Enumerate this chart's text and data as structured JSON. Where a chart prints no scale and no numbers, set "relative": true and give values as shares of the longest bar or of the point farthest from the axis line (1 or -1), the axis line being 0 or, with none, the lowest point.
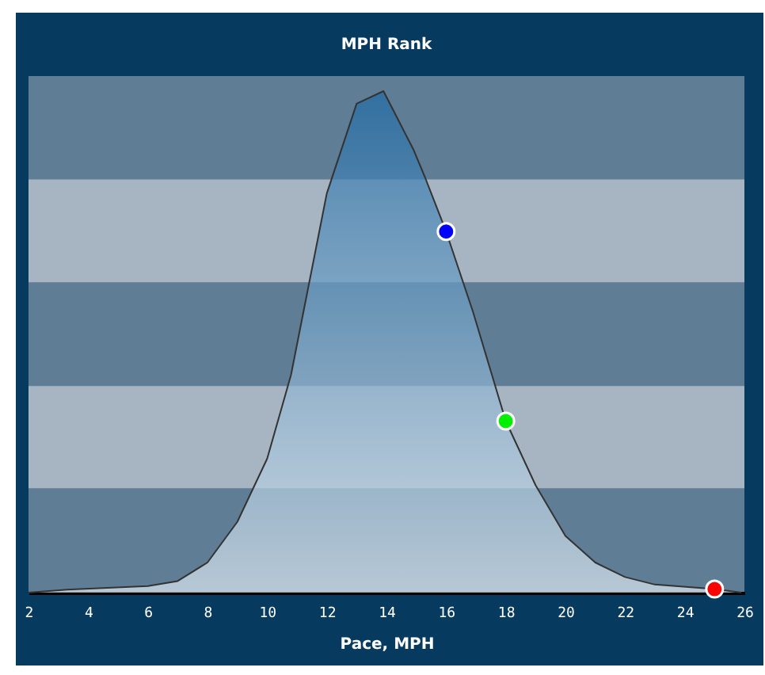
{
  "chart_data": {
    "type": "area",
    "title": "MPH Rank",
    "xlabel": "Pace, MPH",
    "relative": true,
    "xlim": [
      2,
      26
    ],
    "xticks": [
      2,
      4,
      6,
      8,
      10,
      12,
      14,
      16,
      18,
      20,
      22,
      24,
      26
    ],
    "bands": [
      {
        "axis": "y",
        "from": 0.208,
        "to": 0.412,
        "color": "#a7b5c2"
      },
      {
        "axis": "y",
        "from": 0.619,
        "to": 0.824,
        "color": "#a7b5c2"
      }
    ],
    "series": [
      {
        "color": "#1f6aa5",
        "marker": "none",
        "x": [
          2,
          3.3,
          6,
          7,
          8,
          9,
          10,
          10.8,
          12,
          13,
          13.9,
          14.9,
          15.3,
          16,
          16.9,
          18,
          19,
          20,
          21,
          22,
          23,
          25,
          25.9
        ],
        "values": [
          0,
          0.006,
          0.013,
          0.023,
          0.06,
          0.141,
          0.267,
          0.434,
          0.796,
          0.975,
          1,
          0.884,
          0.827,
          0.72,
          0.56,
          0.342,
          0.214,
          0.113,
          0.06,
          0.031,
          0.016,
          0.007,
          0
        ]
      },
      {
        "type": "scatter",
        "marker": "circle",
        "color": "#0000ff",
        "x": [
          16
        ],
        "values": [
          0.72
        ]
      },
      {
        "type": "scatter",
        "marker": "circle",
        "color": "#00ee00",
        "x": [
          18
        ],
        "values": [
          0.342
        ]
      },
      {
        "type": "scatter",
        "marker": "circle",
        "color": "#ff0000",
        "x": [
          25
        ],
        "values": [
          0.007
        ]
      }
    ]
  }
}
